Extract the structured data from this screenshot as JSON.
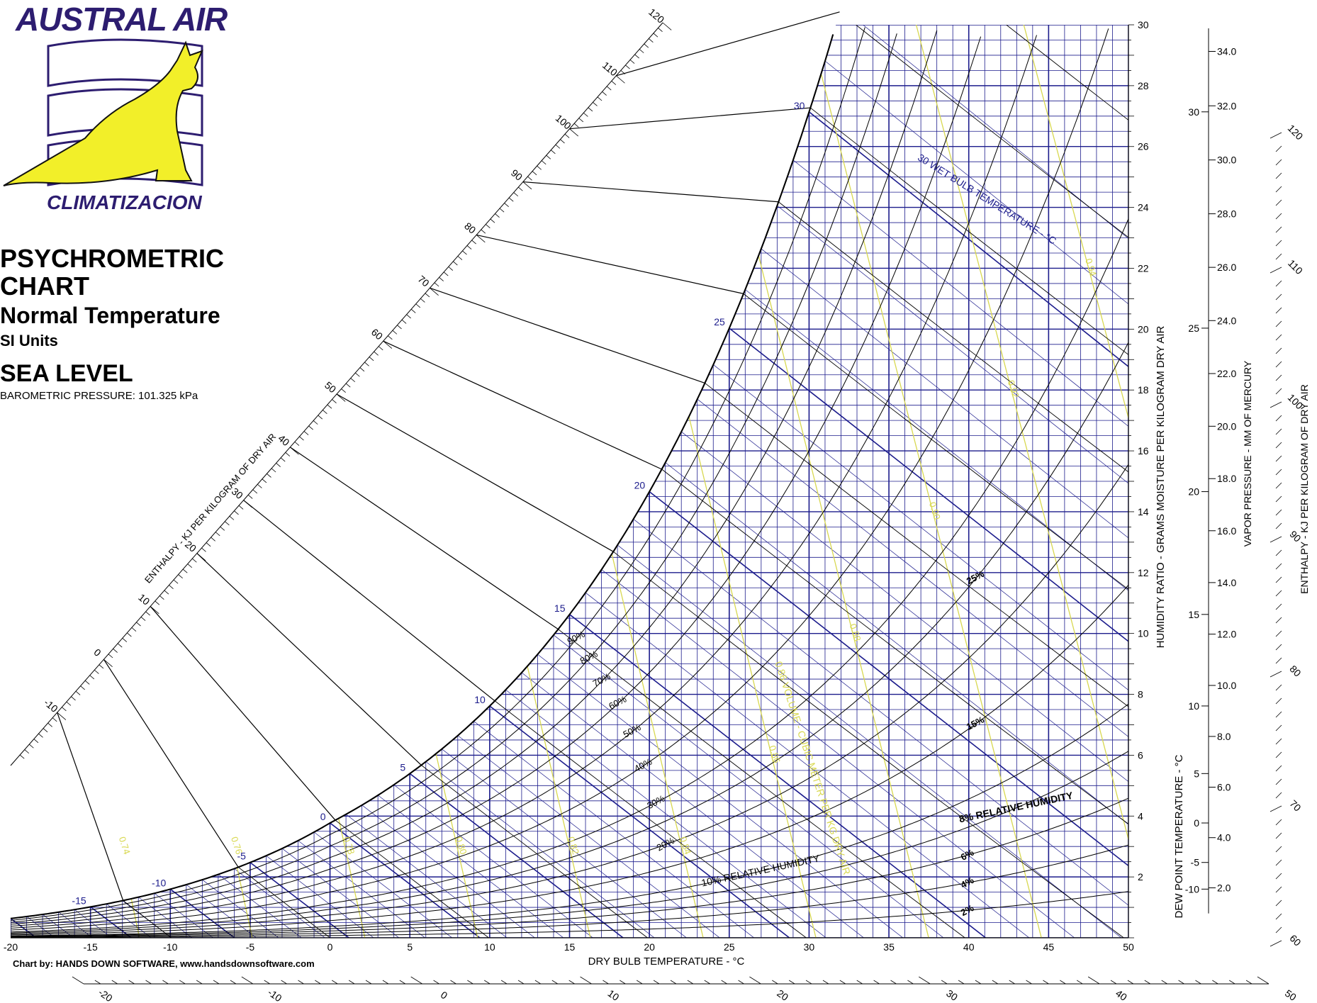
{
  "brand": {
    "name": "AUSTRAL AIR",
    "tagline": "CLIMATIZACION",
    "accent": "#2d1d70",
    "logo_fill": "#f2ef29"
  },
  "header": {
    "title_line1": "PSYCHROMETRIC",
    "title_line2": "CHART",
    "subtitle": "Normal Temperature",
    "units": "SI Units",
    "altitude": "SEA LEVEL",
    "pressure": "BAROMETRIC PRESSURE: 101.325 kPa"
  },
  "credit": "Chart by: HANDS DOWN SOFTWARE, www.handsdownsoftware.com",
  "colors": {
    "grid": "#1c1c8c",
    "volume": "#d8d850",
    "curve": "#000000",
    "text": "#000000"
  },
  "chart_data": {
    "type": "line",
    "title": "PSYCHROMETRIC CHART",
    "xlabel": "DRY BULB TEMPERATURE - °C",
    "ylabel": "HUMIDITY RATIO - GRAMS MOISTURE PER KILOGRAM DRY AIR",
    "xlim": [
      -20,
      50
    ],
    "ylim": [
      0,
      30
    ],
    "x_ticks": [
      "-20",
      "-15",
      "-10",
      "-5",
      "0",
      "5",
      "10",
      "15",
      "20",
      "25",
      "30",
      "35",
      "40",
      "45",
      "50"
    ],
    "y_ticks": [
      "2",
      "4",
      "6",
      "8",
      "10",
      "12",
      "14",
      "16",
      "18",
      "20",
      "22",
      "24",
      "26",
      "28",
      "30"
    ],
    "pressure_kpa": 101.325,
    "rh_curves": [
      {
        "rh": 100,
        "label": ""
      },
      {
        "rh": 90,
        "label": "90%"
      },
      {
        "rh": 80,
        "label": "80%"
      },
      {
        "rh": 70,
        "label": "70%"
      },
      {
        "rh": 60,
        "label": "60%"
      },
      {
        "rh": 50,
        "label": "50%"
      },
      {
        "rh": 40,
        "label": "40%"
      },
      {
        "rh": 30,
        "label": "30%"
      },
      {
        "rh": 25,
        "label": "25%"
      },
      {
        "rh": 20,
        "label": "20%"
      },
      {
        "rh": 15,
        "label": "15%"
      },
      {
        "rh": 10,
        "label": "10% RELATIVE HUMIDITY"
      },
      {
        "rh": 8,
        "label": "8% RELATIVE HUMIDITY"
      },
      {
        "rh": 6,
        "label": "6%"
      },
      {
        "rh": 4,
        "label": "4%"
      },
      {
        "rh": 2,
        "label": "2%"
      }
    ],
    "wet_bulb_labels": [
      "-15",
      "-10",
      "-5",
      "0",
      "5",
      "10",
      "15",
      "20",
      "25",
      "30"
    ],
    "wet_bulb_title": "30 WET BULB TEMPERATURE - °C",
    "volume_lines": [
      0.74,
      0.76,
      0.78,
      0.8,
      0.82,
      0.84,
      0.86,
      0.88,
      0.9,
      0.92,
      0.94
    ],
    "volume_title": "0.86 VOLUME - CUBIC METER PER KG DRY AIR",
    "enthalpy_scale": {
      "label": "ENTHALPY - KJ PER KILOGRAM OF DRY AIR",
      "values": [
        -10,
        0,
        10,
        20,
        30,
        40,
        50,
        60,
        70,
        80,
        90,
        100,
        110,
        120
      ]
    },
    "enthalpy_bottom": [
      "-20",
      "-10",
      "0",
      "10",
      "20",
      "30",
      "40",
      "50"
    ],
    "enthalpy_right": {
      "label": "ENTHALPY - KJ PER KILOGRAM OF DRY AIR",
      "values": [
        "60",
        "70",
        "80",
        "90",
        "100",
        "110",
        "120"
      ]
    },
    "dew_point": {
      "label": "DEW POINT TEMPERATURE - °C",
      "values": [
        -10,
        -5,
        0,
        5,
        10,
        15,
        20,
        25,
        30
      ]
    },
    "vapor_pressure": {
      "label": "VAPOR PRESSURE - MM OF MERCURY",
      "values": [
        "2.0",
        "4.0",
        "6.0",
        "8.0",
        "10.0",
        "12.0",
        "14.0",
        "16.0",
        "18.0",
        "20.0",
        "22.0",
        "24.0",
        "26.0",
        "28.0",
        "30.0",
        "32.0",
        "34.0"
      ]
    }
  }
}
